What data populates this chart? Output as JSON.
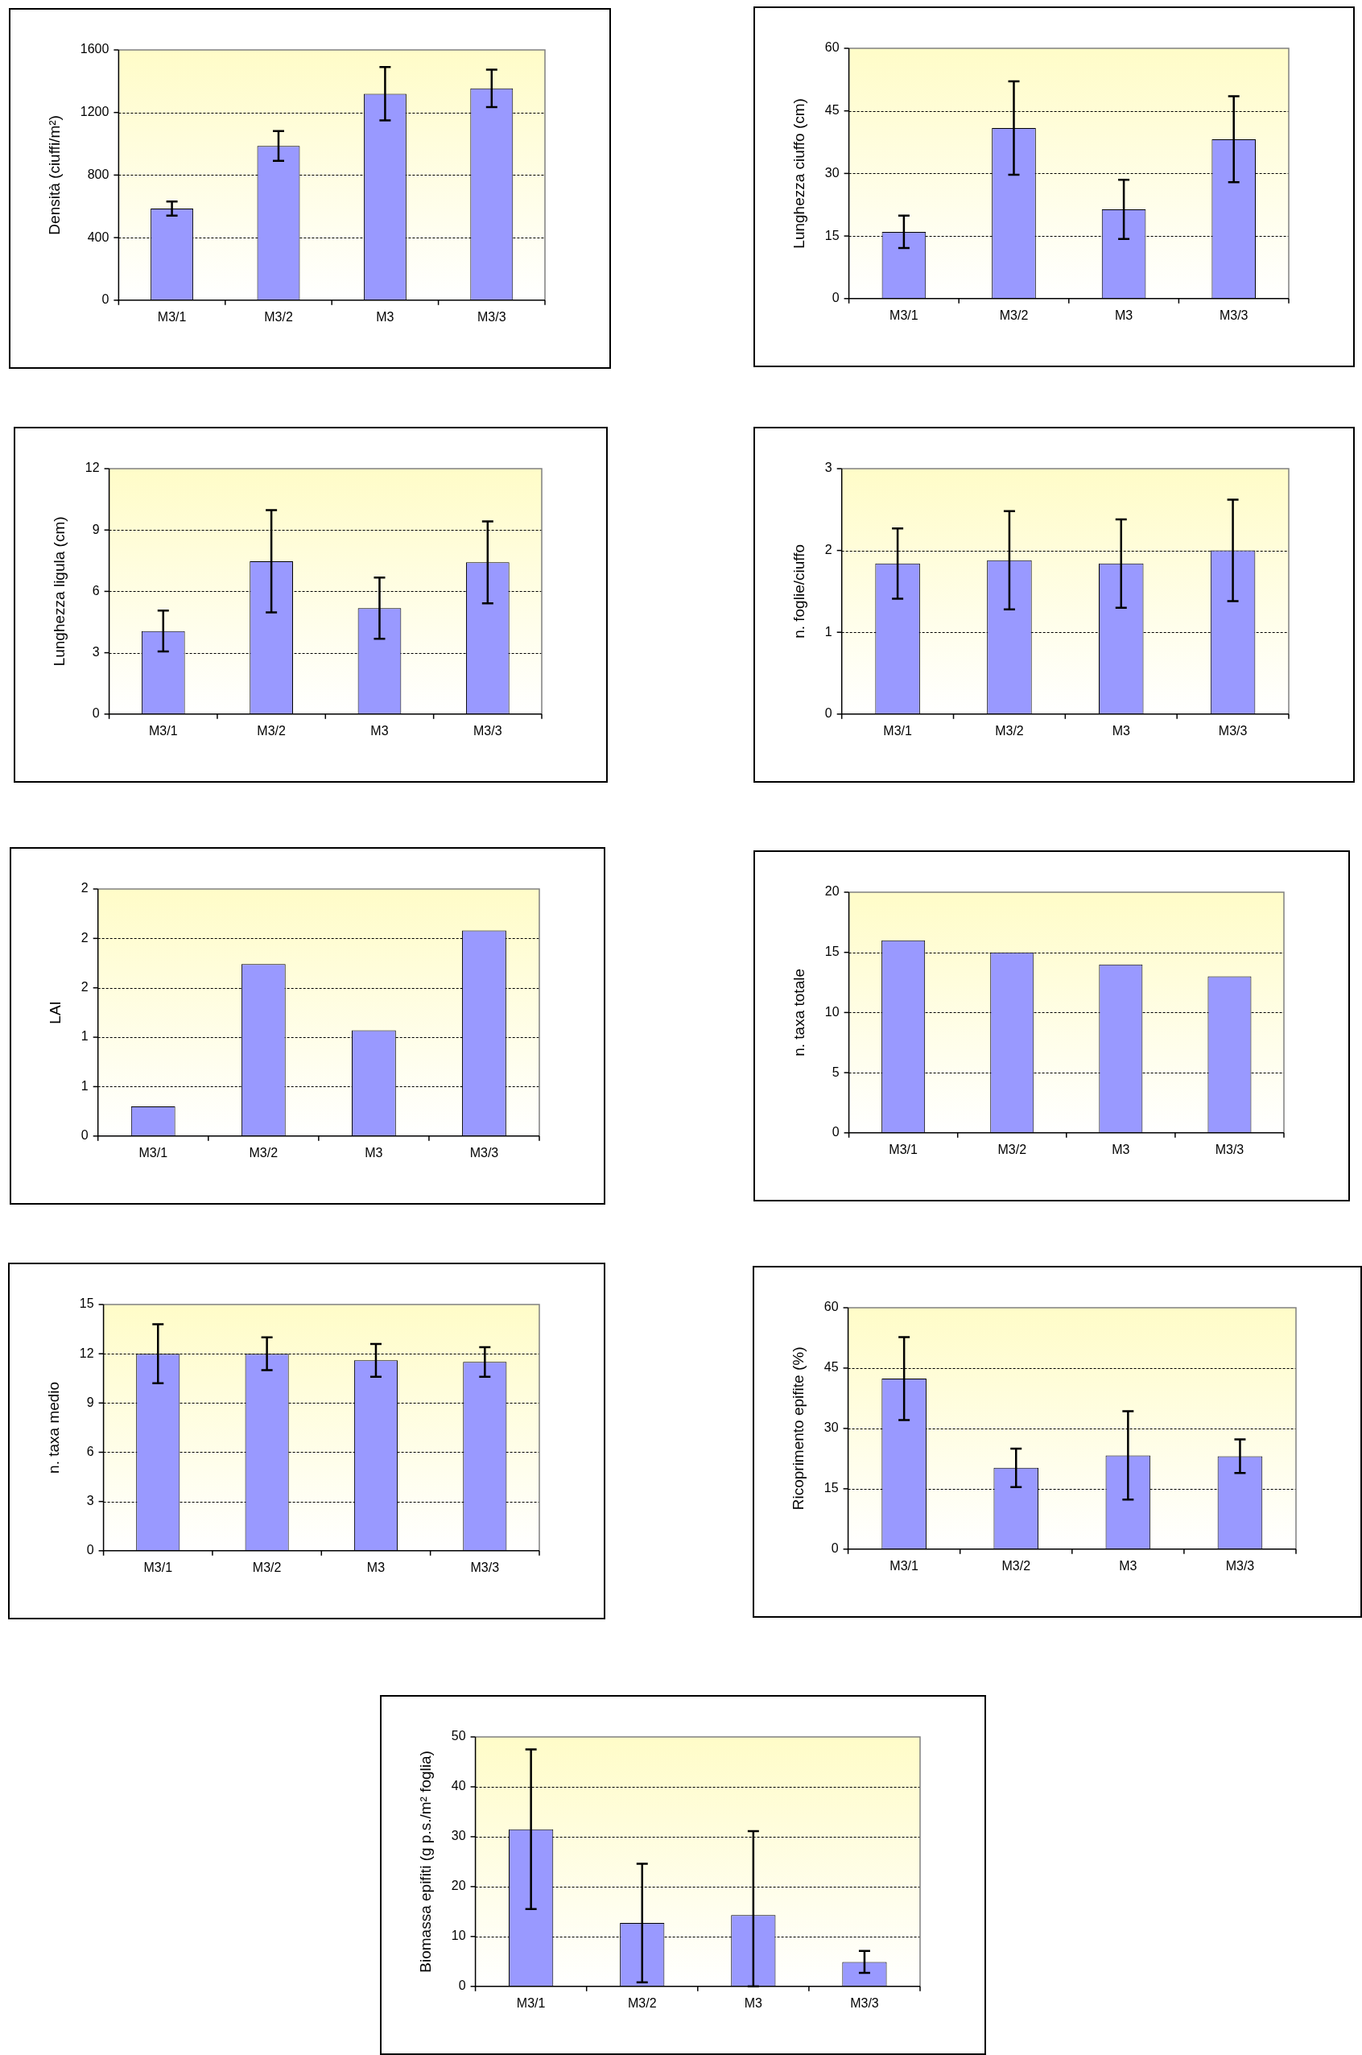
{
  "chart_data": [
    {
      "type": "bar",
      "categories": [
        "M3/1",
        "M3/2",
        "M3",
        "M3/3"
      ],
      "values": [
        586,
        986,
        1320,
        1354
      ],
      "errors": [
        45,
        95,
        170,
        120
      ],
      "color": "#9999ff",
      "ylabel": "Densità (ciuffi/m²)",
      "ylim": [
        0,
        1600
      ],
      "yticks": [
        0,
        400,
        800,
        1200,
        1600
      ],
      "grid": "y"
    },
    {
      "type": "bar",
      "categories": [
        "M3/1",
        "M3/2",
        "M3",
        "M3/3"
      ],
      "values": [
        16.0,
        40.9,
        21.4,
        38.2
      ],
      "errors": [
        3.9,
        11.2,
        7.1,
        10.3
      ],
      "color": "#9999ff",
      "ylabel": "Lunghezza ciuffo (cm)",
      "ylim": [
        0,
        60
      ],
      "yticks": [
        0,
        15,
        30,
        45,
        60
      ],
      "grid": "y"
    },
    {
      "type": "bar",
      "categories": [
        "M3/1",
        "M3/2",
        "M3",
        "M3/3"
      ],
      "values": [
        4.06,
        7.47,
        5.18,
        7.42
      ],
      "errors": [
        1.0,
        2.5,
        1.5,
        2.0
      ],
      "color": "#9999ff",
      "ylabel": "Lunghezza ligula (cm)",
      "ylim": [
        0,
        12
      ],
      "yticks": [
        0,
        3,
        6,
        9,
        12
      ],
      "grid": "y"
    },
    {
      "type": "bar",
      "categories": [
        "M3/1",
        "M3/2",
        "M3",
        "M3/3"
      ],
      "values": [
        1.84,
        1.88,
        1.84,
        2.0
      ],
      "errors": [
        0.43,
        0.6,
        0.54,
        0.62
      ],
      "color": "#9999ff",
      "ylabel": "n. foglie/ciuffo",
      "ylim": [
        0,
        3
      ],
      "yticks": [
        0,
        1,
        2,
        3
      ],
      "grid": "y"
    },
    {
      "type": "bar",
      "categories": [
        "M3/1",
        "M3/2",
        "M3",
        "M3/3"
      ],
      "values": [
        0.3,
        1.74,
        1.07,
        2.08
      ],
      "color": "#9999ff",
      "ylabel": "LAI",
      "ylim": [
        0,
        2.5
      ],
      "yticks": [
        0,
        {
          "value": 0.5,
          "label": "1"
        },
        1,
        {
          "value": 1.5,
          "label": "2"
        },
        2,
        {
          "value": 2.5,
          "label": "2"
        }
      ],
      "grid": "y"
    },
    {
      "type": "bar",
      "categories": [
        "M3/1",
        "M3/2",
        "M3",
        "M3/3"
      ],
      "values": [
        16,
        15,
        14,
        13
      ],
      "color": "#9999ff",
      "ylabel": "n. taxa totale",
      "ylim": [
        0,
        20
      ],
      "yticks": [
        0,
        5,
        10,
        15,
        20
      ],
      "grid": "y"
    },
    {
      "type": "bar",
      "categories": [
        "M3/1",
        "M3/2",
        "M3",
        "M3/3"
      ],
      "values": [
        12.0,
        12.0,
        11.6,
        11.5
      ],
      "errors": [
        1.8,
        1.0,
        1.0,
        0.9
      ],
      "color": "#9999ff",
      "ylabel": "n. taxa medio",
      "ylim": [
        0,
        15
      ],
      "yticks": [
        0,
        3,
        6,
        9,
        12,
        15
      ],
      "grid": "y"
    },
    {
      "type": "bar",
      "categories": [
        "M3/1",
        "M3/2",
        "M3",
        "M3/3"
      ],
      "values": [
        42.4,
        20.2,
        23.3,
        23.1
      ],
      "errors": [
        10.3,
        4.8,
        11.0,
        4.2
      ],
      "color": "#9999ff",
      "ylabel": "Ricoprimento epifite (%)",
      "ylim": [
        0,
        60
      ],
      "yticks": [
        0,
        15,
        30,
        45,
        60
      ],
      "grid": "y"
    },
    {
      "type": "bar",
      "categories": [
        "M3/1",
        "M3/2",
        "M3",
        "M3/3"
      ],
      "values": [
        31.5,
        12.7,
        14.3,
        4.9
      ],
      "errors": [
        16.0,
        11.9,
        [
          0,
          31.1
        ],
        2.2
      ],
      "color": "#9999ff",
      "ylabel": "Biomassa epifiti (g p.s./m² foglia)",
      "ylim": [
        0,
        50
      ],
      "yticks": [
        0,
        10,
        20,
        30,
        40,
        50
      ],
      "grid": "y"
    }
  ]
}
